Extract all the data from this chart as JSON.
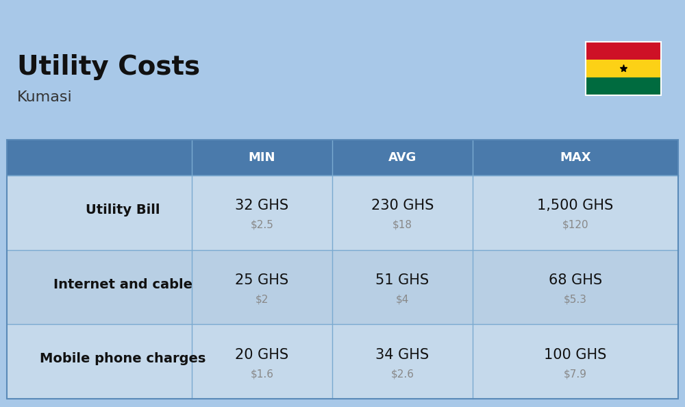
{
  "title": "Utility Costs",
  "subtitle": "Kumasi",
  "background_color": "#a8c8e8",
  "header_bg_color": "#4a7aab",
  "header_text_color": "#ffffff",
  "row_bg_colors": [
    "#c5d9eb",
    "#b8cfe4"
  ],
  "col_divider_color": "#7aaad0",
  "row_divider_color": "#7aaad0",
  "table_border_color": "#5a8ab8",
  "col_labels": [
    "MIN",
    "AVG",
    "MAX"
  ],
  "rows": [
    {
      "label": "Utility Bill",
      "min_ghs": "32 GHS",
      "min_usd": "$2.5",
      "avg_ghs": "230 GHS",
      "avg_usd": "$18",
      "max_ghs": "1,500 GHS",
      "max_usd": "$120"
    },
    {
      "label": "Internet and cable",
      "min_ghs": "25 GHS",
      "min_usd": "$2",
      "avg_ghs": "51 GHS",
      "avg_usd": "$4",
      "max_ghs": "68 GHS",
      "max_usd": "$5.3"
    },
    {
      "label": "Mobile phone charges",
      "min_ghs": "20 GHS",
      "min_usd": "$1.6",
      "avg_ghs": "34 GHS",
      "avg_usd": "$2.6",
      "max_ghs": "100 GHS",
      "max_usd": "$7.9"
    }
  ],
  "ghana_flag_colors": [
    "#CE1126",
    "#FCD116",
    "#006B3F"
  ],
  "title_fontsize": 28,
  "subtitle_fontsize": 16,
  "header_fontsize": 13,
  "cell_ghs_fontsize": 15,
  "cell_usd_fontsize": 11,
  "label_fontsize": 14
}
